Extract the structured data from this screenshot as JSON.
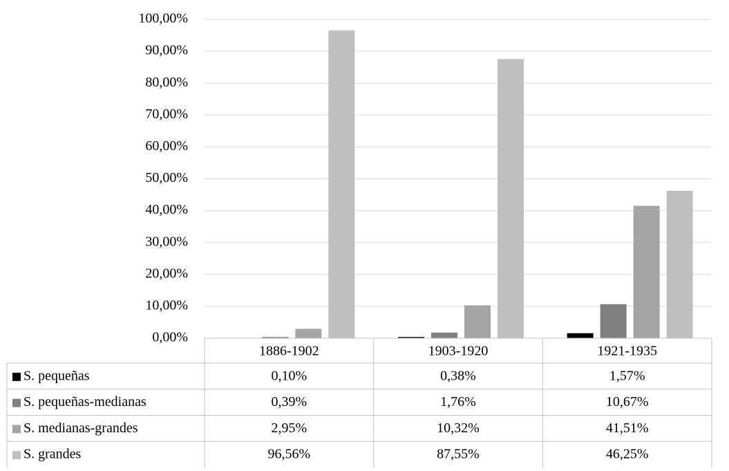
{
  "chart_data": {
    "type": "bar",
    "categories": [
      "1886-1902",
      "1903-1920",
      "1921-1935"
    ],
    "series": [
      {
        "name": "S. pequeñas",
        "color": "#000000",
        "values": [
          0.1,
          0.38,
          1.57
        ],
        "value_labels": [
          "0,10%",
          "0,38%",
          "1,57%"
        ]
      },
      {
        "name": "S. pequeñas-medianas",
        "color": "#7f7f7f",
        "values": [
          0.39,
          1.76,
          10.67
        ],
        "value_labels": [
          "0,39%",
          "1,76%",
          "10,67%"
        ]
      },
      {
        "name": "S. medianas-grandes",
        "color": "#a5a5a5",
        "values": [
          2.95,
          10.32,
          41.51
        ],
        "value_labels": [
          "2,95%",
          "10,32%",
          "41,51%"
        ]
      },
      {
        "name": "S. grandes",
        "color": "#bfbfbf",
        "values": [
          96.56,
          87.55,
          46.25
        ],
        "value_labels": [
          "96,56%",
          "87,55%",
          "46,25%"
        ]
      }
    ],
    "ylim": [
      0,
      100
    ],
    "yticks": [
      {
        "value": 0,
        "label": "0,00%"
      },
      {
        "value": 10,
        "label": "10,00%"
      },
      {
        "value": 20,
        "label": "20,00%"
      },
      {
        "value": 30,
        "label": "30,00%"
      },
      {
        "value": 40,
        "label": "40,00%"
      },
      {
        "value": 50,
        "label": "50,00%"
      },
      {
        "value": 60,
        "label": "60,00%"
      },
      {
        "value": 70,
        "label": "70,00%"
      },
      {
        "value": 80,
        "label": "80,00%"
      },
      {
        "value": 90,
        "label": "90,00%"
      },
      {
        "value": 100,
        "label": "100,00%"
      }
    ],
    "grid": true
  }
}
